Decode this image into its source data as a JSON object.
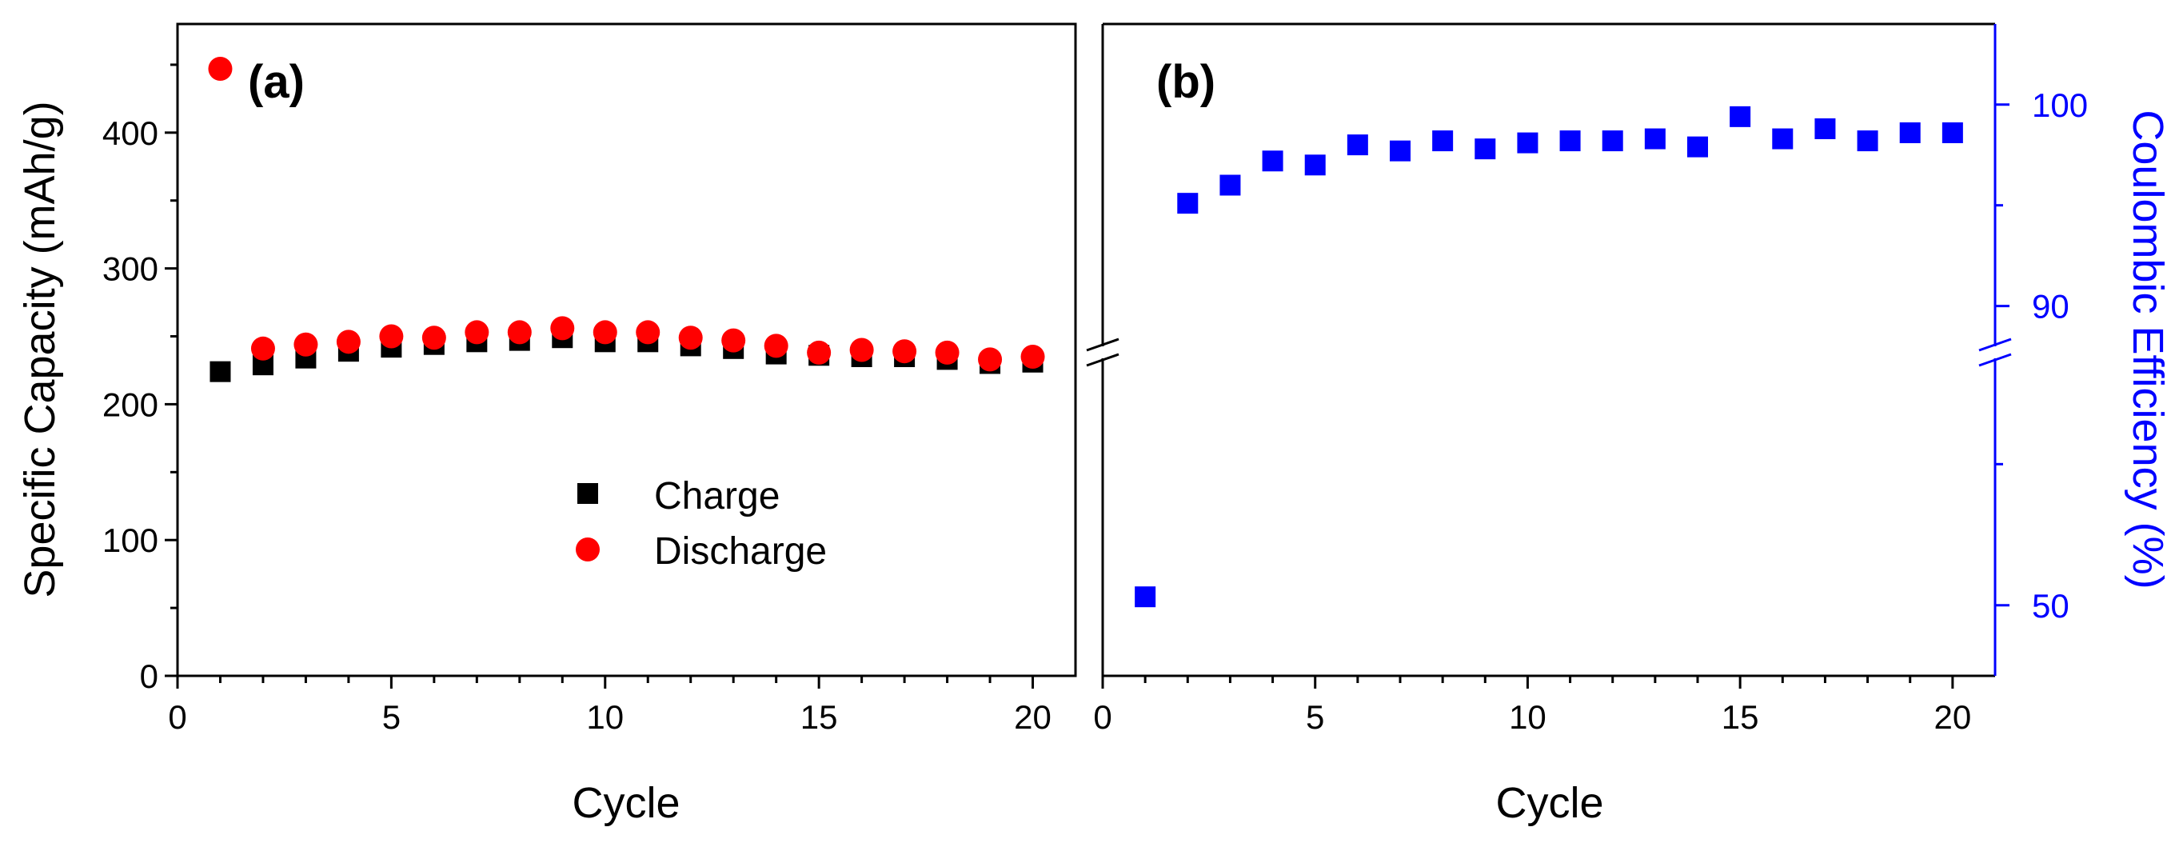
{
  "chart_data": [
    {
      "type": "scatter",
      "panel_label": "(a)",
      "xlabel": "Cycle",
      "ylabel": "Specific Capacity (mAh/g)",
      "xlim": [
        0,
        21
      ],
      "ylim": [
        0,
        480
      ],
      "xticks": [
        0,
        5,
        10,
        15,
        20
      ],
      "yticks": [
        0,
        100,
        200,
        300,
        400
      ],
      "grid": false,
      "legend": "center",
      "series": [
        {
          "name": "Charge",
          "marker": "square",
          "color": "#000000",
          "x": [
            1,
            2,
            3,
            4,
            5,
            6,
            7,
            8,
            9,
            10,
            11,
            12,
            13,
            14,
            15,
            16,
            17,
            18,
            19,
            20
          ],
          "y": [
            224,
            229,
            234,
            239,
            242,
            244,
            246,
            247,
            249,
            246,
            246,
            243,
            241,
            237,
            236,
            235,
            235,
            233,
            230,
            231
          ]
        },
        {
          "name": "Discharge",
          "marker": "circle",
          "color": "#ff0000",
          "x": [
            1,
            2,
            3,
            4,
            5,
            6,
            7,
            8,
            9,
            10,
            11,
            12,
            13,
            14,
            15,
            16,
            17,
            18,
            19,
            20
          ],
          "y": [
            447,
            241,
            244,
            246,
            250,
            249,
            253,
            253,
            256,
            253,
            253,
            249,
            247,
            243,
            238,
            240,
            239,
            238,
            233,
            235
          ]
        }
      ]
    },
    {
      "type": "scatter",
      "panel_label": "(b)",
      "xlabel": "Cycle",
      "ylabel": "Coulombic Efficiency (%)",
      "xlim": [
        0,
        21
      ],
      "y_axis_break": {
        "lower_range": [
          40,
          85
        ],
        "upper_range": [
          88,
          104
        ]
      },
      "xticks": [
        0,
        5,
        10,
        15,
        20
      ],
      "yticks": [
        50,
        90,
        100
      ],
      "grid": false,
      "series": [
        {
          "name": "Coulombic Efficiency",
          "marker": "square",
          "color": "#0000ff",
          "x": [
            1,
            2,
            3,
            4,
            5,
            6,
            7,
            8,
            9,
            10,
            11,
            12,
            13,
            14,
            15,
            16,
            17,
            18,
            19,
            20
          ],
          "y": [
            51.2,
            95.1,
            96.0,
            97.2,
            97.0,
            98.0,
            97.7,
            98.2,
            97.8,
            98.1,
            98.2,
            98.2,
            98.3,
            97.9,
            99.4,
            98.3,
            98.8,
            98.2,
            98.6,
            98.6
          ]
        }
      ]
    }
  ],
  "colors": {
    "axis": "#000000",
    "accent_right_axis": "#0000ff",
    "charge": "#000000",
    "discharge": "#ff0000",
    "efficiency": "#0000ff"
  }
}
